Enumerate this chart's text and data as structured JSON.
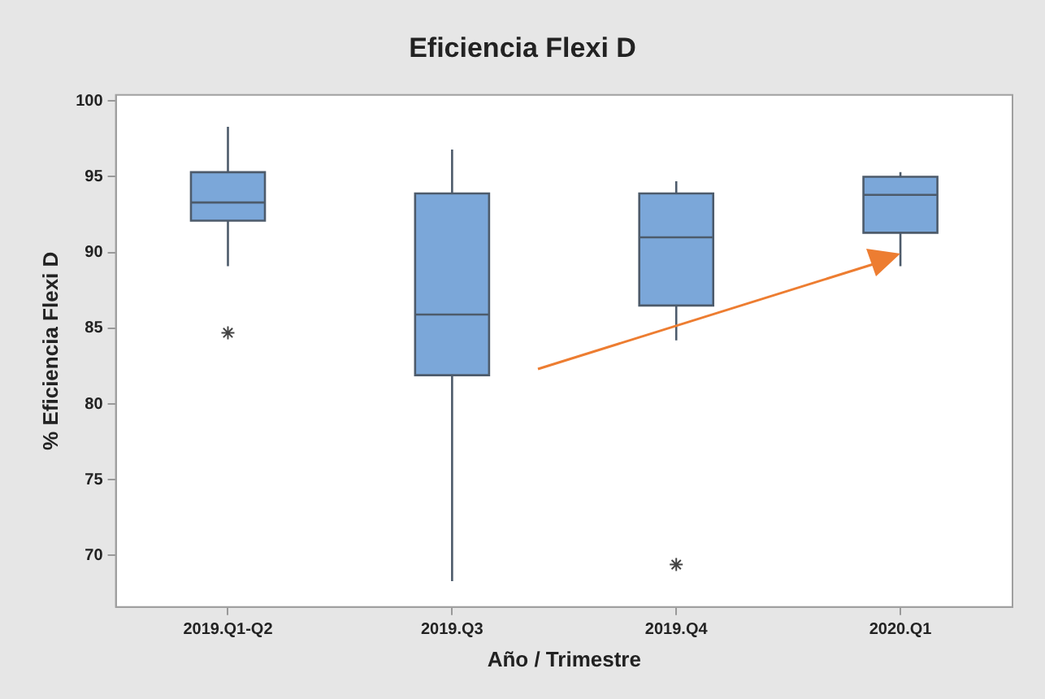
{
  "chart_data": {
    "type": "box",
    "title": "Eficiencia Flexi D",
    "xlabel": "Año / Trimestre",
    "ylabel": "% Eficiencia Flexi D",
    "categories": [
      "2019.Q1-Q2",
      "2019.Q3",
      "2019.Q4",
      "2020.Q1"
    ],
    "color": "#7ba7d9",
    "boxes": [
      {
        "low": 89.1,
        "q1": 92.1,
        "median": 93.3,
        "q3": 95.3,
        "high": 98.3,
        "outliers": [
          84.7
        ]
      },
      {
        "low": 68.3,
        "q1": 81.9,
        "median": 85.9,
        "q3": 93.9,
        "high": 96.8
      },
      {
        "low": 84.2,
        "q1": 86.5,
        "median": 91.0,
        "q3": 93.9,
        "high": 94.7,
        "outliers": [
          69.4
        ]
      },
      {
        "low": 89.1,
        "q1": 91.3,
        "median": 93.8,
        "q3": 95.0,
        "high": 95.3
      }
    ],
    "ylim": [
      66.6,
      100.4
    ],
    "yticks": [
      70,
      75,
      80,
      85,
      90,
      95,
      100
    ]
  }
}
